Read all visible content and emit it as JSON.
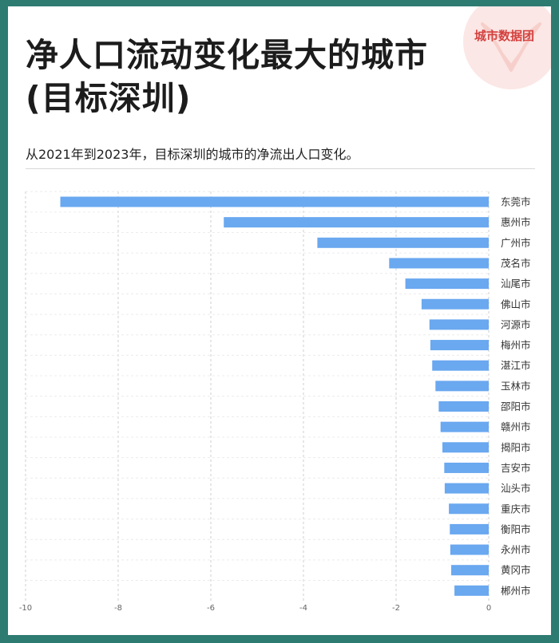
{
  "title_line1": "净人口流动变化最大的城市",
  "title_line2": "(目标深圳)",
  "subtitle": "从2021年到2023年，目标深圳的城市的净流出人口变化。",
  "logo": {
    "text": "城市数据团",
    "icon": "fox-head-icon",
    "color": "#d3413f"
  },
  "colors": {
    "bar": "#6aa8f0",
    "background": "#2e7b72",
    "grid": "#cfcfcf"
  },
  "chart_data": {
    "type": "bar",
    "orientation": "horizontal",
    "title": "净人口流动变化最大的城市(目标深圳)",
    "xlabel": "",
    "ylabel": "",
    "xlim": [
      -10,
      0
    ],
    "x_ticks": [
      "-10",
      "-8",
      "-6",
      "-4",
      "-2",
      "0"
    ],
    "x_tick_values": [
      -10,
      -8,
      -6,
      -4,
      -2,
      0
    ],
    "grid": "vertical dashed",
    "categories": [
      "东莞市",
      "惠州市",
      "广州市",
      "茂名市",
      "汕尾市",
      "佛山市",
      "河源市",
      "梅州市",
      "湛江市",
      "玉林市",
      "邵阳市",
      "赣州市",
      "揭阳市",
      "吉安市",
      "汕头市",
      "重庆市",
      "衡阳市",
      "永州市",
      "黄冈市",
      "郴州市"
    ],
    "values": [
      -9.25,
      -5.72,
      -3.7,
      -2.15,
      -1.8,
      -1.45,
      -1.28,
      -1.26,
      -1.22,
      -1.15,
      -1.08,
      -1.04,
      -1.0,
      -0.96,
      -0.95,
      -0.86,
      -0.84,
      -0.83,
      -0.81,
      -0.74
    ]
  }
}
